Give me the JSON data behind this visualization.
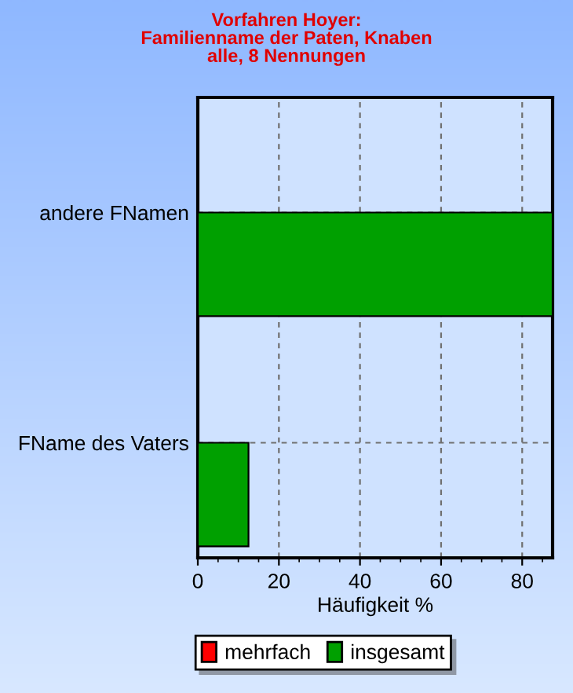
{
  "chart_data": {
    "type": "bar",
    "orientation": "horizontal",
    "title": "Vorfahren Hoyer:\nFamilienname der Paten, Knaben\nalle, 8 Nennungen",
    "xlabel": "Häufigkeit %",
    "categories": [
      "andere FNamen",
      "FName des Vaters"
    ],
    "series": [
      {
        "name": "mehrfach",
        "color": "#ff0000",
        "values": [
          null,
          null
        ]
      },
      {
        "name": "insgesamt",
        "color": "#00a000",
        "values": [
          87.5,
          12.5
        ]
      }
    ],
    "xlim": [
      0,
      87.5
    ],
    "xticks": [
      0,
      20,
      40,
      60,
      80
    ],
    "grid": true,
    "legend": "bottom"
  }
}
